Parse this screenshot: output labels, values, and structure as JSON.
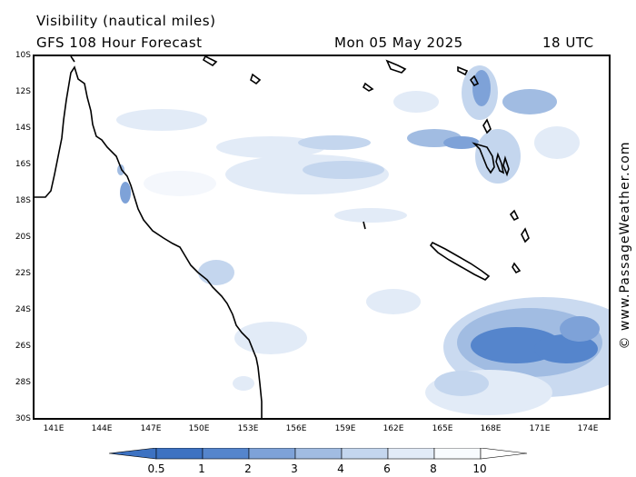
{
  "title_line1": "Visibility (nautical miles)",
  "title_line2": "GFS 108 Hour Forecast",
  "forecast_date": "Mon 05 May 2025",
  "forecast_time": "18 UTC",
  "credit": "© www.PassageWeather.com",
  "lat_ticks": [
    "10S",
    "12S",
    "14S",
    "16S",
    "18S",
    "20S",
    "22S",
    "24S",
    "26S",
    "28S",
    "30S"
  ],
  "lon_ticks": [
    "141E",
    "144E",
    "147E",
    "150E",
    "153E",
    "156E",
    "159E",
    "162E",
    "165E",
    "168E",
    "171E",
    "174E"
  ],
  "colorbar": {
    "labels": [
      "0.5",
      "1",
      "2",
      "3",
      "4",
      "6",
      "8",
      "10"
    ],
    "colors": [
      "#3d72c2",
      "#5585cc",
      "#7ea2d8",
      "#a1bce2",
      "#c4d6ee",
      "#e2ebf7",
      "#f8fbfe",
      "#ffffff"
    ]
  },
  "map": {
    "region": "Coral Sea / Queensland coast / New Caledonia / Vanuatu",
    "lat_range": [
      "10S",
      "30S"
    ],
    "lon_range": [
      "140E",
      "175E"
    ]
  }
}
